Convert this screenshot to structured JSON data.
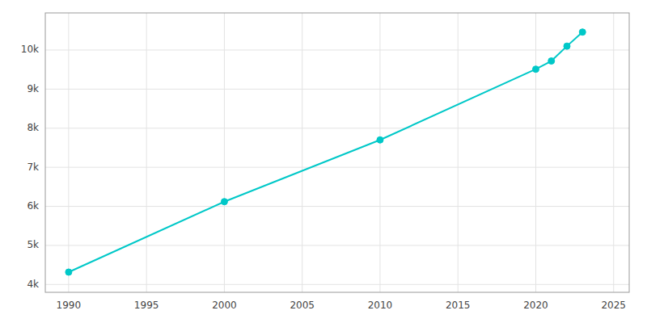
{
  "chart_data": {
    "type": "line",
    "x": [
      1990,
      2000,
      2010,
      2020,
      2021,
      2022,
      2023
    ],
    "values": [
      4317,
      6120,
      7700,
      9510,
      9720,
      10100,
      10460
    ],
    "color": "#00C8C8",
    "marker": "circle",
    "grid": true,
    "xlim": [
      1988.5,
      2026
    ],
    "ylim": [
      3800,
      10950
    ],
    "xticks": [
      1990,
      1995,
      2000,
      2005,
      2010,
      2015,
      2020,
      2025
    ],
    "yticks": [
      {
        "value": 4000,
        "label": "4k"
      },
      {
        "value": 5000,
        "label": "5k"
      },
      {
        "value": 6000,
        "label": "6k"
      },
      {
        "value": 7000,
        "label": "7k"
      },
      {
        "value": 8000,
        "label": "8k"
      },
      {
        "value": 9000,
        "label": "9k"
      },
      {
        "value": 10000,
        "label": "10k"
      }
    ]
  }
}
